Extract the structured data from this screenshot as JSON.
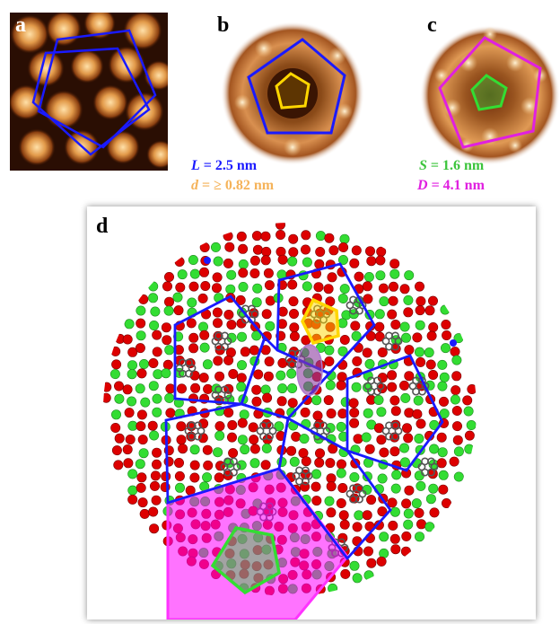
{
  "panels": {
    "a": {
      "label": "a"
    },
    "b": {
      "label": "b"
    },
    "c": {
      "label": "c"
    },
    "d": {
      "label": "d"
    }
  },
  "captions": {
    "b_line1": {
      "symbol": "L",
      "value": "= 2.5 nm",
      "color": "#1a1aff"
    },
    "b_line2": {
      "symbol": "d",
      "value": "= ≥ 0.82 nm",
      "color": "#f5b35a"
    },
    "c_line1": {
      "symbol": "S",
      "value": "= 1.6 nm",
      "color": "#3cc43c"
    },
    "c_line2": {
      "symbol": "D",
      "value": "= 4.1 nm",
      "color": "#e020e0"
    }
  },
  "colors": {
    "tiling_outline": "#1a1aff",
    "inner_pentagon": "#ffd700",
    "small_pentagon": "#33dd33",
    "large_pentagon": "#ff33ff",
    "oxygen_atom": "#dd0000",
    "green_atom": "#33dd33",
    "carbon_molecule": "#555555",
    "stm_dark": "#1a0a02",
    "stm_bright": "#ffe6b0"
  }
}
